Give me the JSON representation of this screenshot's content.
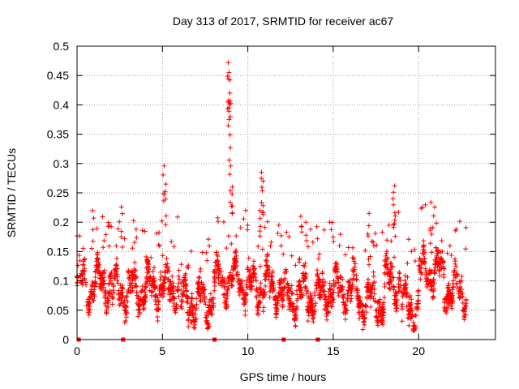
{
  "chart_data": {
    "type": "scatter",
    "title": "Day 313 of 2017, SRMTID for receiver ac67",
    "xlabel": "GPS time / hours",
    "ylabel": "SRMTID / TECUs",
    "xlim": [
      0,
      24.5
    ],
    "ylim": [
      0,
      0.5
    ],
    "xticks": [
      0,
      5,
      10,
      15,
      20
    ],
    "yticks": [
      0,
      0.05,
      0.1,
      0.15,
      0.2,
      0.25,
      0.3,
      0.35,
      0.4,
      0.45,
      0.5
    ],
    "ytick_labels": [
      "0",
      "0.05",
      "0.1",
      "0.15",
      "0.2",
      "0.25",
      "0.3",
      "0.35",
      "0.4",
      "0.45",
      "0.5"
    ],
    "grid": true,
    "marker": "+",
    "color": "#ff0000",
    "series": [
      {
        "name": "SRMTID",
        "description": "dense scatter of ~0.03-0.15 TECU values across 0-22.8 h with spikes near 0.3 (5 h), 0.47 (9 h), 0.28 (11 h), 0.26 (18.7 h)",
        "baseline_segments": [
          {
            "x": [
              0.0,
              2.0
            ],
            "mean": 0.095
          },
          {
            "x": [
              2.0,
              4.5
            ],
            "mean": 0.085
          },
          {
            "x": [
              4.5,
              6.0
            ],
            "mean": 0.09
          },
          {
            "x": [
              6.0,
              8.0
            ],
            "mean": 0.065
          },
          {
            "x": [
              8.0,
              10.0
            ],
            "mean": 0.1
          },
          {
            "x": [
              10.0,
              12.0
            ],
            "mean": 0.09
          },
          {
            "x": [
              12.0,
              14.5
            ],
            "mean": 0.075
          },
          {
            "x": [
              14.5,
              16.5
            ],
            "mean": 0.085
          },
          {
            "x": [
              16.5,
              18.0
            ],
            "mean": 0.065
          },
          {
            "x": [
              18.0,
              19.0
            ],
            "mean": 0.1
          },
          {
            "x": [
              19.0,
              20.0
            ],
            "mean": 0.055
          },
          {
            "x": [
              20.0,
              21.5
            ],
            "mean": 0.115
          },
          {
            "x": [
              21.5,
              22.8
            ],
            "mean": 0.085
          }
        ],
        "spikes": [
          {
            "x": 0.9,
            "y": 0.22
          },
          {
            "x": 2.6,
            "y": 0.226
          },
          {
            "x": 5.1,
            "y": 0.296
          },
          {
            "x": 5.2,
            "y": 0.265
          },
          {
            "x": 8.85,
            "y": 0.472
          },
          {
            "x": 8.9,
            "y": 0.455
          },
          {
            "x": 8.95,
            "y": 0.42
          },
          {
            "x": 8.9,
            "y": 0.395
          },
          {
            "x": 9.0,
            "y": 0.296
          },
          {
            "x": 9.1,
            "y": 0.26
          },
          {
            "x": 10.8,
            "y": 0.285
          },
          {
            "x": 10.9,
            "y": 0.27
          },
          {
            "x": 10.7,
            "y": 0.22
          },
          {
            "x": 13.1,
            "y": 0.21
          },
          {
            "x": 13.4,
            "y": 0.2
          },
          {
            "x": 17.1,
            "y": 0.215
          },
          {
            "x": 18.6,
            "y": 0.262
          },
          {
            "x": 18.5,
            "y": 0.24
          },
          {
            "x": 20.7,
            "y": 0.19
          }
        ],
        "zero_markers_x": [
          0.1,
          2.7,
          8.05,
          12.1,
          14.1
        ]
      }
    ]
  }
}
